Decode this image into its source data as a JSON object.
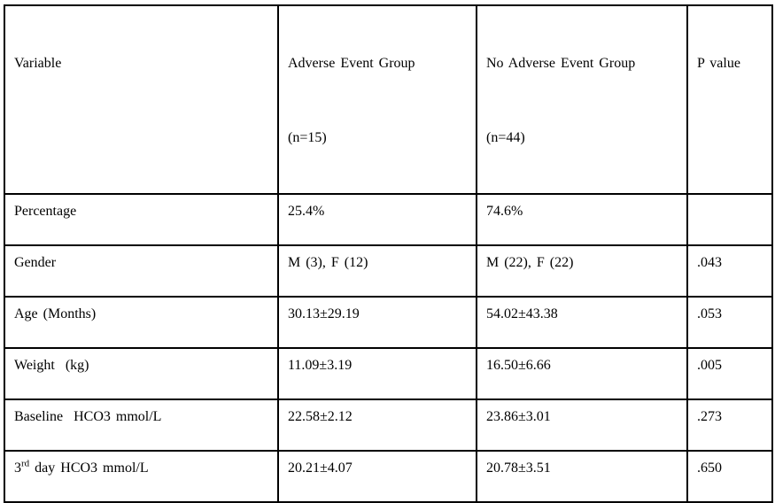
{
  "table": {
    "border_color": "#000000",
    "text_color": "#000000",
    "background": "#ffffff",
    "columns": [
      {
        "title": "Variable",
        "subtitle": ""
      },
      {
        "title": "Adverse Event Group",
        "subtitle": "(n=15)"
      },
      {
        "title": "No Adverse Event Group",
        "subtitle": "(n=44)"
      },
      {
        "title": "P value",
        "subtitle": ""
      }
    ],
    "rows": [
      {
        "variable": "Percentage",
        "adverse": "25.4%",
        "no_adverse": "74.6%",
        "p": ""
      },
      {
        "variable": "Gender",
        "adverse": "M (3), F (12)",
        "no_adverse": "M (22), F (22)",
        "p": ".043"
      },
      {
        "variable": "Age (Months)",
        "adverse": "30.13±29.19",
        "no_adverse": "54.02±43.38",
        "p": ".053"
      },
      {
        "variable": "Weight  (kg)",
        "adverse": "11.09±3.19",
        "no_adverse": "16.50±6.66",
        "p": ".005"
      },
      {
        "variable": "Baseline  HCO3 mmol/L",
        "adverse": "22.58±2.12",
        "no_adverse": "23.86±3.01",
        "p": ".273"
      },
      {
        "variable_pre": "3",
        "variable_sup": "rd",
        "variable_post": " day HCO3 mmol/L",
        "adverse": "20.21±4.07",
        "no_adverse": "20.78±3.51",
        "p": ".650"
      }
    ]
  }
}
